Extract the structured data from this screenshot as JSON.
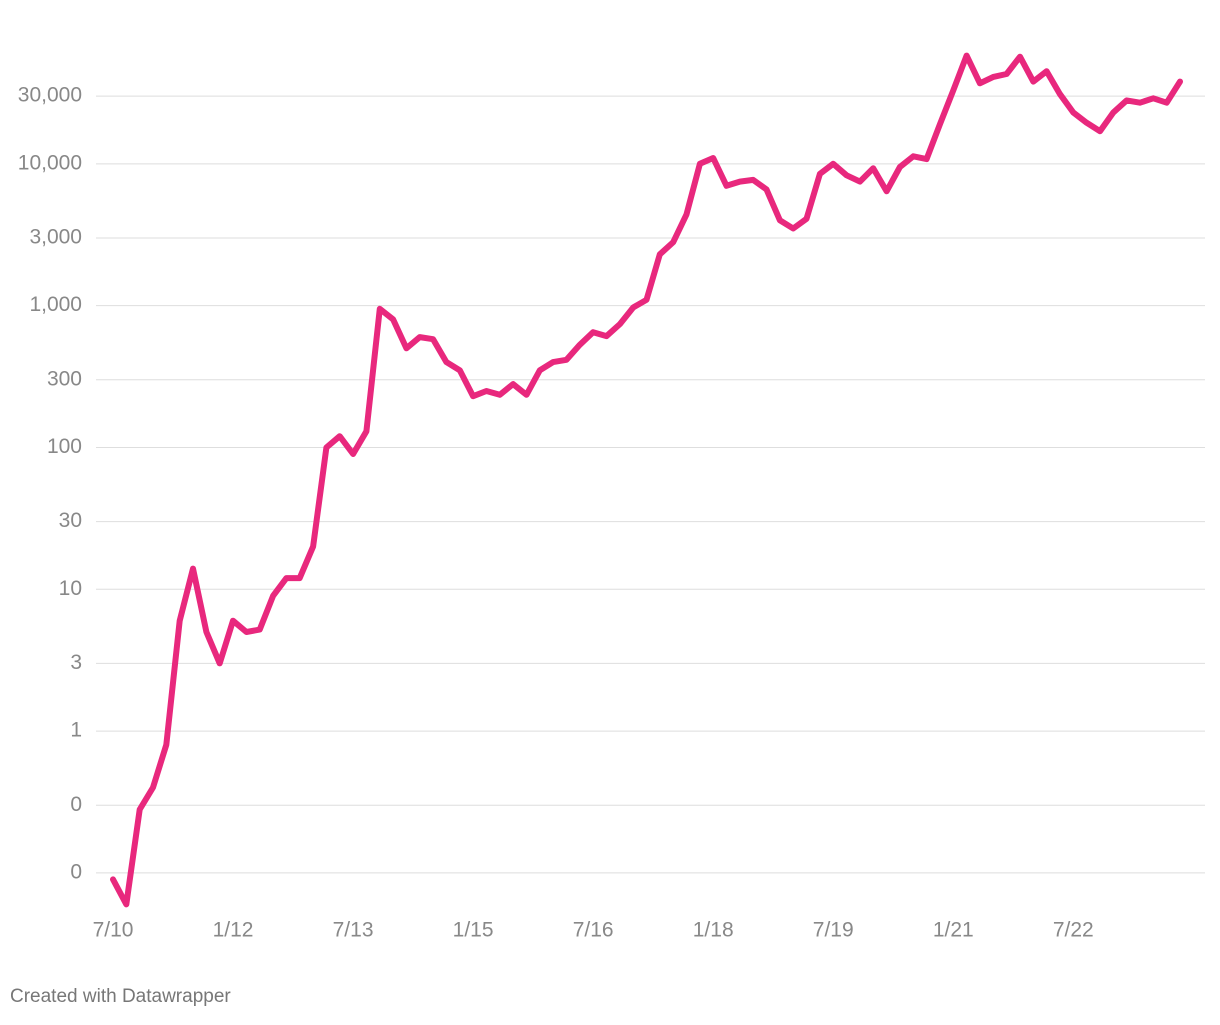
{
  "chart_data": {
    "type": "line",
    "log_scale": true,
    "grid": true,
    "categories": [
      "7/10",
      null,
      null,
      null,
      null,
      null,
      null,
      null,
      null,
      "1/12",
      null,
      null,
      null,
      null,
      null,
      null,
      null,
      null,
      "7/13",
      null,
      null,
      null,
      null,
      null,
      null,
      null,
      null,
      "1/15",
      null,
      null,
      null,
      null,
      null,
      null,
      null,
      null,
      "7/16",
      null,
      null,
      null,
      null,
      null,
      null,
      null,
      null,
      "1/18",
      null,
      null,
      null,
      null,
      null,
      null,
      null,
      null,
      "7/19",
      null,
      null,
      null,
      null,
      null,
      null,
      null,
      null,
      "1/21",
      null,
      null,
      null,
      null,
      null,
      null,
      null,
      null,
      "7/22",
      null,
      null,
      null,
      null,
      null,
      null,
      null,
      null
    ],
    "series": [
      {
        "color": "#e8287d",
        "values": [
          0.09,
          0.06,
          0.28,
          0.4,
          0.8,
          6,
          14,
          5,
          3,
          6,
          5,
          5.2,
          9,
          12,
          12,
          20,
          100,
          120,
          90,
          130,
          950,
          800,
          500,
          600,
          580,
          400,
          350,
          230,
          250,
          235,
          280,
          235,
          350,
          400,
          415,
          530,
          650,
          610,
          740,
          970,
          1100,
          2300,
          2800,
          4400,
          10000,
          11000,
          7000,
          7500,
          7700,
          6600,
          4000,
          3500,
          4100,
          8500,
          10000,
          8300,
          7500,
          9300,
          6400,
          9500,
          11300,
          10800,
          19000,
          33000,
          58000,
          37000,
          41000,
          43000,
          57000,
          38000,
          45000,
          31000,
          23000,
          19500,
          17000,
          23000,
          28000,
          27000,
          29000,
          27000,
          38000
        ]
      }
    ],
    "ylim": [
      0.05,
      70000
    ],
    "yticks": [
      {
        "value": 30000,
        "label": "30,000"
      },
      {
        "value": 10000,
        "label": "10,000"
      },
      {
        "value": 3000,
        "label": "3,000"
      },
      {
        "value": 1000,
        "label": "1,000"
      },
      300,
      100,
      30,
      10,
      3,
      1,
      {
        "value": 0.3,
        "label": "0"
      },
      {
        "value": 0.1,
        "label": "0"
      }
    ],
    "credit": "Created with Datawrapper"
  }
}
